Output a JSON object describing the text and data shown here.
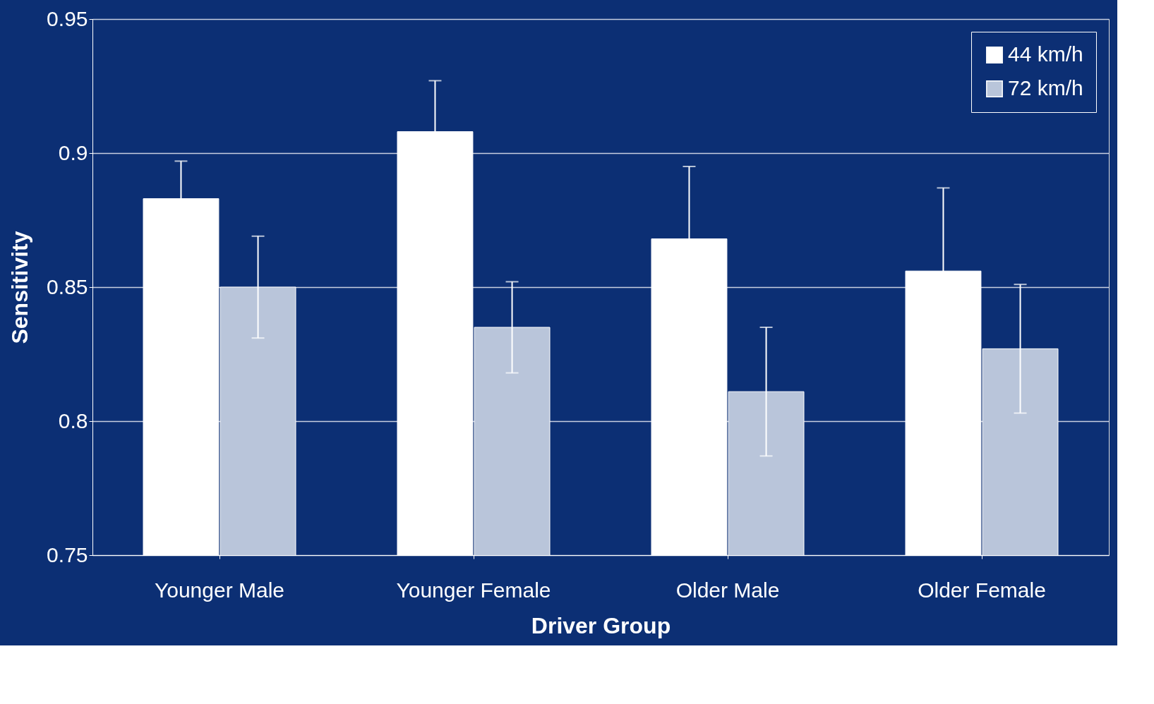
{
  "chart_data": {
    "type": "bar",
    "xlabel": "Driver Group",
    "ylabel": "Sensitivity",
    "categories": [
      "Younger Male",
      "Younger Female",
      "Older Male",
      "Older Female"
    ],
    "series": [
      {
        "name": "44 km/h",
        "color": "#ffffff",
        "values": [
          0.883,
          0.908,
          0.868,
          0.856
        ],
        "errors": [
          0.014,
          0.019,
          0.027,
          0.031
        ]
      },
      {
        "name": "72 km/h",
        "color": "#b9c5da",
        "values": [
          0.85,
          0.835,
          0.811,
          0.827
        ],
        "errors": [
          0.019,
          0.017,
          0.024,
          0.024
        ]
      }
    ],
    "ylim": [
      0.75,
      0.95
    ],
    "yticks": [
      0.75,
      0.8,
      0.85,
      0.9,
      0.95
    ],
    "grid": "y",
    "legend": "top right"
  }
}
